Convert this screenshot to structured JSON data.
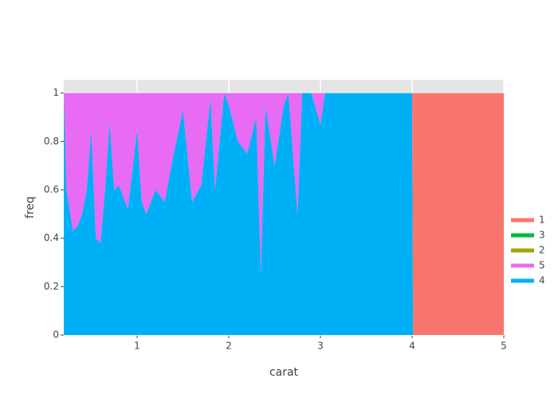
{
  "chart_data": {
    "type": "area",
    "x_label": "carat",
    "y_label": "freq",
    "x": [
      0.2,
      0.23,
      0.3,
      0.35,
      0.4,
      0.45,
      0.5,
      0.55,
      0.6,
      0.65,
      0.7,
      0.75,
      0.8,
      0.9,
      1.0,
      1.05,
      1.1,
      1.2,
      1.3,
      1.4,
      1.5,
      1.6,
      1.7,
      1.8,
      1.85,
      1.95,
      2.0,
      2.1,
      2.2,
      2.3,
      2.35,
      2.4,
      2.5,
      2.6,
      2.65,
      2.75,
      2.8,
      2.9,
      3.0,
      3.05,
      4.0,
      4.01,
      5.0
    ],
    "series": [
      {
        "name": "4",
        "color": "#00B0F6",
        "values": [
          1.0,
          0.6,
          0.43,
          0.45,
          0.5,
          0.6,
          0.85,
          0.4,
          0.38,
          0.6,
          0.88,
          0.6,
          0.62,
          0.52,
          0.85,
          0.55,
          0.5,
          0.6,
          0.55,
          0.75,
          0.93,
          0.55,
          0.62,
          0.98,
          0.6,
          1.0,
          0.95,
          0.8,
          0.75,
          0.9,
          0.25,
          0.95,
          0.7,
          0.95,
          1.0,
          0.5,
          1.0,
          1.0,
          0.87,
          1.0,
          1.0,
          0,
          0
        ]
      },
      {
        "name": "5",
        "color": "#E76BF3",
        "values": [
          0,
          0.4,
          0.57,
          0.55,
          0.5,
          0.4,
          0.15,
          0.6,
          0.62,
          0.4,
          0.12,
          0.4,
          0.38,
          0.48,
          0.15,
          0.45,
          0.5,
          0.4,
          0.45,
          0.25,
          0.07,
          0.45,
          0.38,
          0.02,
          0.4,
          0,
          0.05,
          0.2,
          0.25,
          0.1,
          0.75,
          0.05,
          0.3,
          0.05,
          0,
          0.5,
          0,
          0,
          0.13,
          0,
          0,
          0,
          0
        ]
      },
      {
        "name": "2",
        "color": "#A3A500",
        "values": [
          0,
          0,
          0,
          0,
          0,
          0,
          0,
          0,
          0,
          0,
          0,
          0,
          0,
          0,
          0,
          0,
          0,
          0,
          0,
          0,
          0,
          0,
          0,
          0,
          0,
          0,
          0,
          0,
          0,
          0,
          0,
          0,
          0,
          0,
          0,
          0,
          0,
          0,
          0,
          0,
          0,
          0,
          0
        ]
      },
      {
        "name": "3",
        "color": "#00BA38",
        "values": [
          0,
          0,
          0,
          0,
          0,
          0,
          0,
          0,
          0,
          0,
          0,
          0,
          0,
          0,
          0,
          0,
          0,
          0,
          0,
          0,
          0,
          0,
          0,
          0,
          0,
          0,
          0,
          0,
          0,
          0,
          0,
          0,
          0,
          0,
          0,
          0,
          0,
          0,
          0,
          0,
          0,
          0,
          0
        ]
      },
      {
        "name": "1",
        "color": "#F8766D",
        "values": [
          0,
          0,
          0,
          0,
          0,
          0,
          0,
          0,
          0,
          0,
          0,
          0,
          0,
          0,
          0,
          0,
          0,
          0,
          0,
          0,
          0,
          0,
          0,
          0,
          0,
          0,
          0,
          0,
          0,
          0,
          0,
          0,
          0,
          0,
          0,
          0,
          0,
          0,
          0,
          0,
          0,
          1,
          1
        ]
      }
    ],
    "xlim": [
      0.2,
      5
    ],
    "ylim": [
      0,
      1.055
    ],
    "xticks": [
      1,
      2,
      3,
      4,
      5
    ],
    "yticks": [
      0,
      0.2,
      0.4,
      0.6,
      0.8,
      1
    ],
    "grid": true,
    "legend": "right"
  }
}
